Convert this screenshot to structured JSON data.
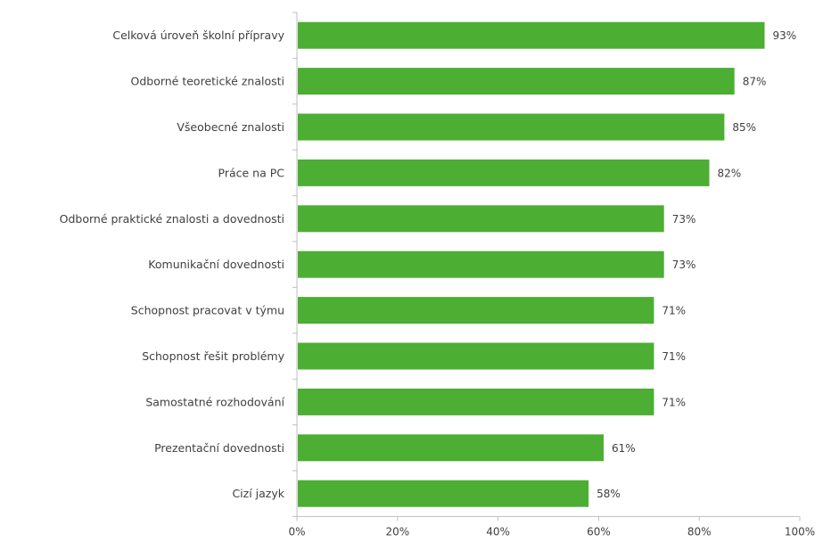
{
  "chart_data": {
    "type": "bar",
    "orientation": "horizontal",
    "categories": [
      "Celková úroveň školní přípravy",
      "Odborné teoretické znalosti",
      "Všeobecné znalosti",
      "Práce na PC",
      "Odborné praktické znalosti a dovednosti",
      "Komunikační dovednosti",
      "Schopnost pracovat v týmu",
      "Schopnost řešit problémy",
      "Samostatné rozhodování",
      "Prezentační dovednosti",
      "Cizí jazyk"
    ],
    "values": [
      93,
      87,
      85,
      82,
      73,
      73,
      71,
      71,
      71,
      61,
      58
    ],
    "value_labels": [
      "93%",
      "87%",
      "85%",
      "82%",
      "73%",
      "73%",
      "71%",
      "71%",
      "71%",
      "61%",
      "58%"
    ],
    "x_ticks": [
      "0%",
      "20%",
      "40%",
      "60%",
      "80%",
      "100%"
    ],
    "xlim": [
      0,
      100
    ],
    "grid": false,
    "legend": "none",
    "bar_color": "#4cae33",
    "axis_color": "#bfbfbf",
    "text_color": "#404040"
  }
}
